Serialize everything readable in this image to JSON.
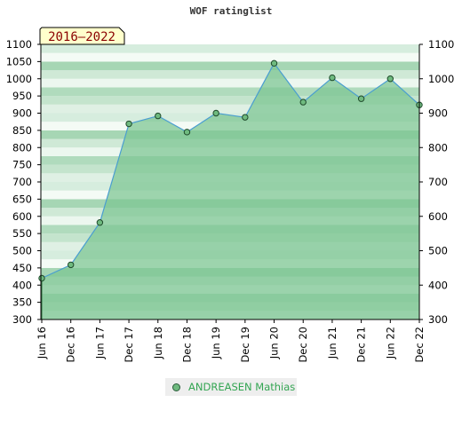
{
  "chart_data": {
    "type": "area",
    "title": "WOF ratinglist",
    "badge": "2016–2022",
    "categories": [
      "Jun 16",
      "Dec 16",
      "Jun 17",
      "Dec 17",
      "Jun 18",
      "Dec 18",
      "Jun 19",
      "Dec 19",
      "Jun 20",
      "Dec 20",
      "Jun 21",
      "Dec 21",
      "Jun 22",
      "Dec 22"
    ],
    "series": [
      {
        "name": "ANDREASEN Mathias",
        "values": [
          420,
          459,
          582,
          869,
          892,
          845,
          900,
          888,
          1045,
          932,
          1003,
          942,
          1000,
          924
        ]
      }
    ],
    "ylim": [
      300,
      1100
    ],
    "yticks": [
      300,
      350,
      400,
      450,
      500,
      550,
      600,
      650,
      700,
      750,
      800,
      850,
      900,
      950,
      1000,
      1050,
      1100
    ],
    "yticks_right": [
      300,
      400,
      500,
      600,
      700,
      800,
      900,
      1000,
      1100
    ],
    "grid": false,
    "legend": "bottom",
    "colors": {
      "line": "#4a9ed0",
      "fill": "#7cc592",
      "marker": "#6fba7f",
      "legend_text": "#33a552"
    }
  }
}
